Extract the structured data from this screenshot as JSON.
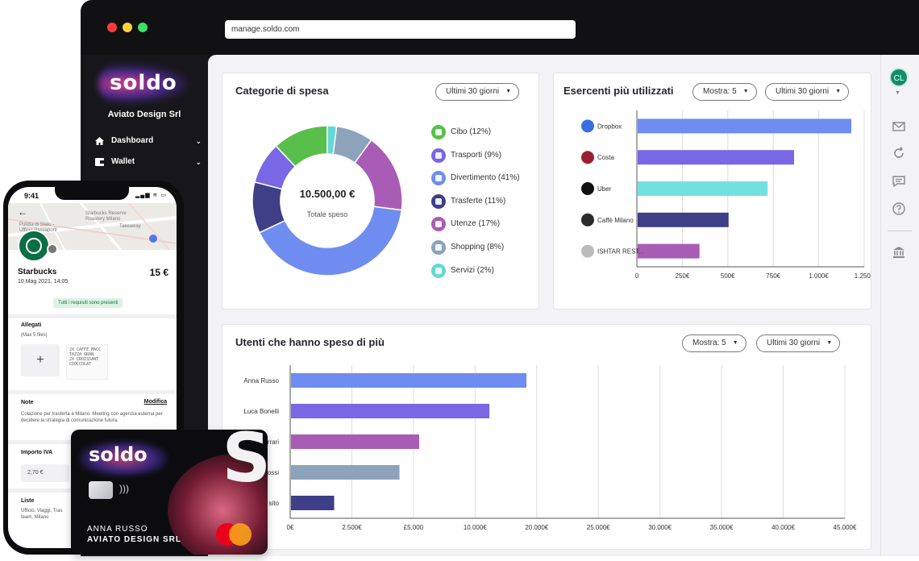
{
  "browser": {
    "url": "manage.soldo.com"
  },
  "sidebar": {
    "logo_text": "soldo",
    "company": "Aviato Design Srl",
    "items": [
      {
        "label": "Dashboard",
        "icon": "home-icon"
      },
      {
        "label": "Wallet",
        "icon": "wallet-icon"
      }
    ]
  },
  "categories_card": {
    "title": "Categorie di spesa",
    "period": "Ultimi 30 giorni",
    "total_value": "10.500,00 €",
    "total_label": "Totale speso"
  },
  "merchants_card": {
    "title": "Esercenti più utilizzati",
    "show": "Mostra: 5",
    "period": "Ultimi 30 giorni"
  },
  "users_card": {
    "title": "Utenti che hanno speso di più",
    "show": "Mostra: 5",
    "period": "Ultimi 30 giorni"
  },
  "chart_data": [
    {
      "type": "pie",
      "title": "Categorie di spesa",
      "categories": [
        "Cibo (12%)",
        "Trasporti (9%)",
        "Divertimento (41%)",
        "Trasferte (11%)",
        "Utenze (17%)",
        "Shopping (8%)",
        "Servizi (2%)"
      ],
      "values": [
        12,
        9,
        41,
        11,
        17,
        8,
        2
      ],
      "colors": [
        "#58c04a",
        "#7a67e6",
        "#6f8df0",
        "#3e3f86",
        "#a95cb5",
        "#8ca3bb",
        "#64d8d6"
      ],
      "legend_icons": [
        "food-icon",
        "bus-icon",
        "ticket-icon",
        "suitcase-icon",
        "bulb-icon",
        "bag-icon",
        "service-icon"
      ],
      "legend": "right"
    },
    {
      "type": "bar",
      "orientation": "horizontal",
      "title": "Esercenti più utilizzati",
      "categories": [
        "Dropbox",
        "Costa",
        "Uber",
        "Caffè Milano",
        "ISHTAR REST..."
      ],
      "values": [
        1175,
        860,
        715,
        500,
        340
      ],
      "colors": [
        "#6f8df0",
        "#7a67e6",
        "#72e0df",
        "#3e3f86",
        "#a95cb5"
      ],
      "xlim": [
        0,
        1250
      ],
      "xticks": [
        "0",
        "250€",
        "500€",
        "750€",
        "1.000€",
        "1.250€"
      ],
      "grid": true
    },
    {
      "type": "bar",
      "orientation": "horizontal",
      "title": "Utenti che hanno speso di più",
      "categories": [
        "Anna Russo",
        "Luca Bonelli",
        "rrari",
        "ossi",
        "sito"
      ],
      "values": [
        19100,
        16100,
        10400,
        8800,
        3500
      ],
      "colors": [
        "#6f8df0",
        "#7a67e6",
        "#a95cb5",
        "#8ca3bb",
        "#3e3f86"
      ],
      "xlim": [
        0,
        45000
      ],
      "xticks": [
        "0€",
        "2.500€",
        "£5,000",
        "10.000€",
        "20.000€",
        "25.000€",
        "30.000€",
        "35.000€",
        "40.000€",
        "45.000€"
      ],
      "grid": true
    }
  ],
  "rightbar": {
    "avatar": "CL",
    "icons": [
      "mail-icon",
      "refresh-icon",
      "chat-icon",
      "help-icon",
      "bank-icon"
    ]
  },
  "phone": {
    "time": "9:41",
    "status": "▂▄▆ ≋ ▭",
    "map_text_1": "Polizia di Stato -",
    "map_text_2": "Ufficio Passaporti",
    "map_text_3": "Starbucks Reserve",
    "map_text_4": "Roastery Milano",
    "map_text_5": "Takeaway",
    "merchant": "Starbucks",
    "amount": "15 €",
    "date": "10 Mag 2021, 14:05",
    "requirements": "Tutti i requisiti sono presenti",
    "attachments_title": "Allegati",
    "attachments_hint": "(Max 5 files)",
    "receipt_lines": [
      "2X  CAFFE MACC",
      "    TAZZA GRAN",
      "2X  CROISSANT",
      "    CIOCCOLAT"
    ],
    "notes_title": "Note",
    "notes_edit": "Modifica",
    "notes_text": "Colazione per trasferta a Milano. Meeting con agenzia esterna per decidere la strategia di comunicazione futura.",
    "vat_title": "Importo IVA",
    "vat_value": "2,70 €",
    "lists_title": "Liste",
    "lists_text": "Ufficio, Viaggi, Tras",
    "lists_text_2": "team, Milano"
  },
  "card": {
    "logo_text": "soldo",
    "big_letter": "S",
    "holder": "ANNA RUSSO",
    "company": "AVIATO DESIGN SRL"
  }
}
